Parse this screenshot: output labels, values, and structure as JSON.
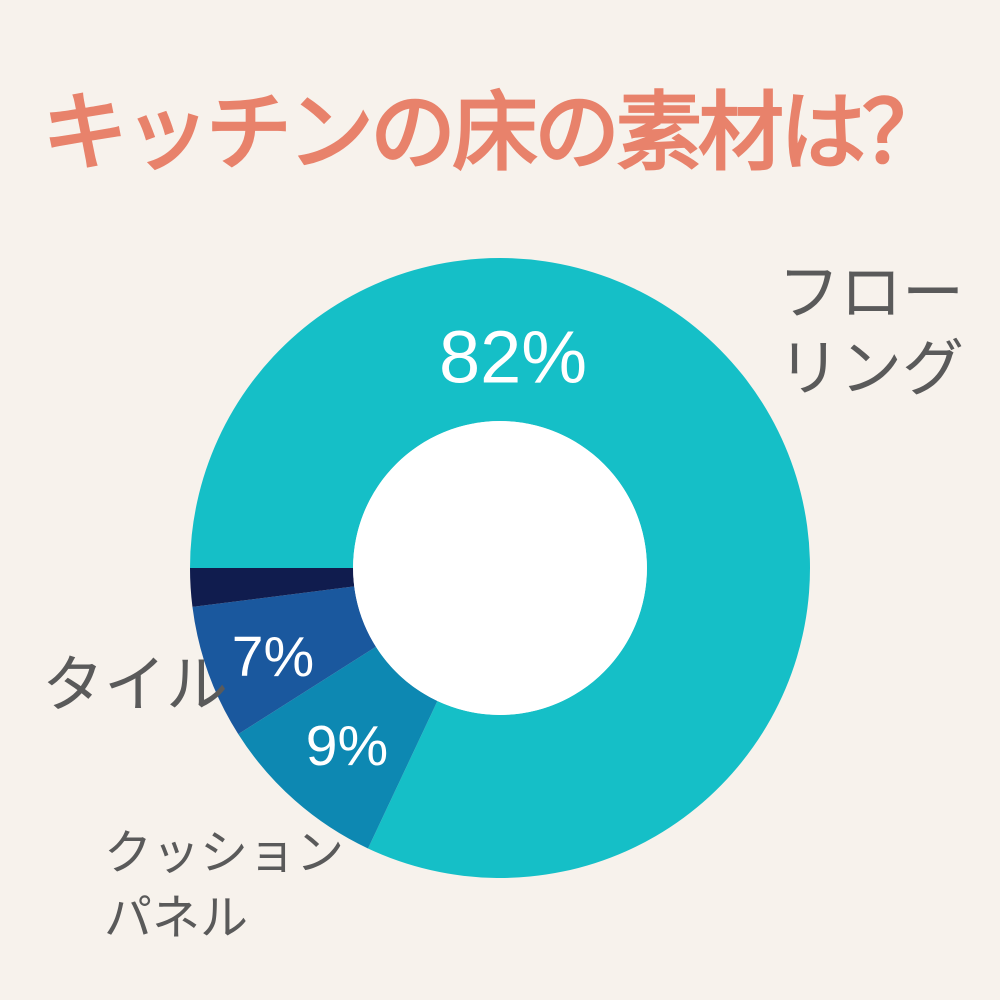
{
  "page": {
    "background": "#f7f2ec",
    "title": "キッチンの床の素材は？",
    "title_color": "#e8826b",
    "category_label_color": "#5a5a5a",
    "percent_label_color": "#ffffff"
  },
  "chart_data": {
    "type": "pie",
    "subtype": "donut",
    "title": "キッチンの床の素材は？",
    "start_angle_deg": 180,
    "direction": "clockwise",
    "donut_hole_ratio": 0.474,
    "hole_color": "#ffffff",
    "legend_position": "around-chart",
    "segments": [
      {
        "id": "flooring",
        "label": "フローリング",
        "value": 82,
        "pct_label": "82%",
        "color": "#15bfc7"
      },
      {
        "id": "cushion-panel",
        "label": "クッションパネル",
        "value": 9,
        "pct_label": "9%",
        "color": "#0d88b2"
      },
      {
        "id": "tile",
        "label": "タイル",
        "value": 7,
        "pct_label": "7%",
        "color": "#1a589e"
      },
      {
        "id": "other",
        "label": "",
        "value": 2,
        "pct_label": "",
        "color": "#101c4e"
      }
    ]
  },
  "labels": {
    "flooring_line1": "フロー",
    "flooring_line2": "リング",
    "tile": "タイル",
    "cushion_line1": "クッション",
    "cushion_line2": "パネル"
  }
}
